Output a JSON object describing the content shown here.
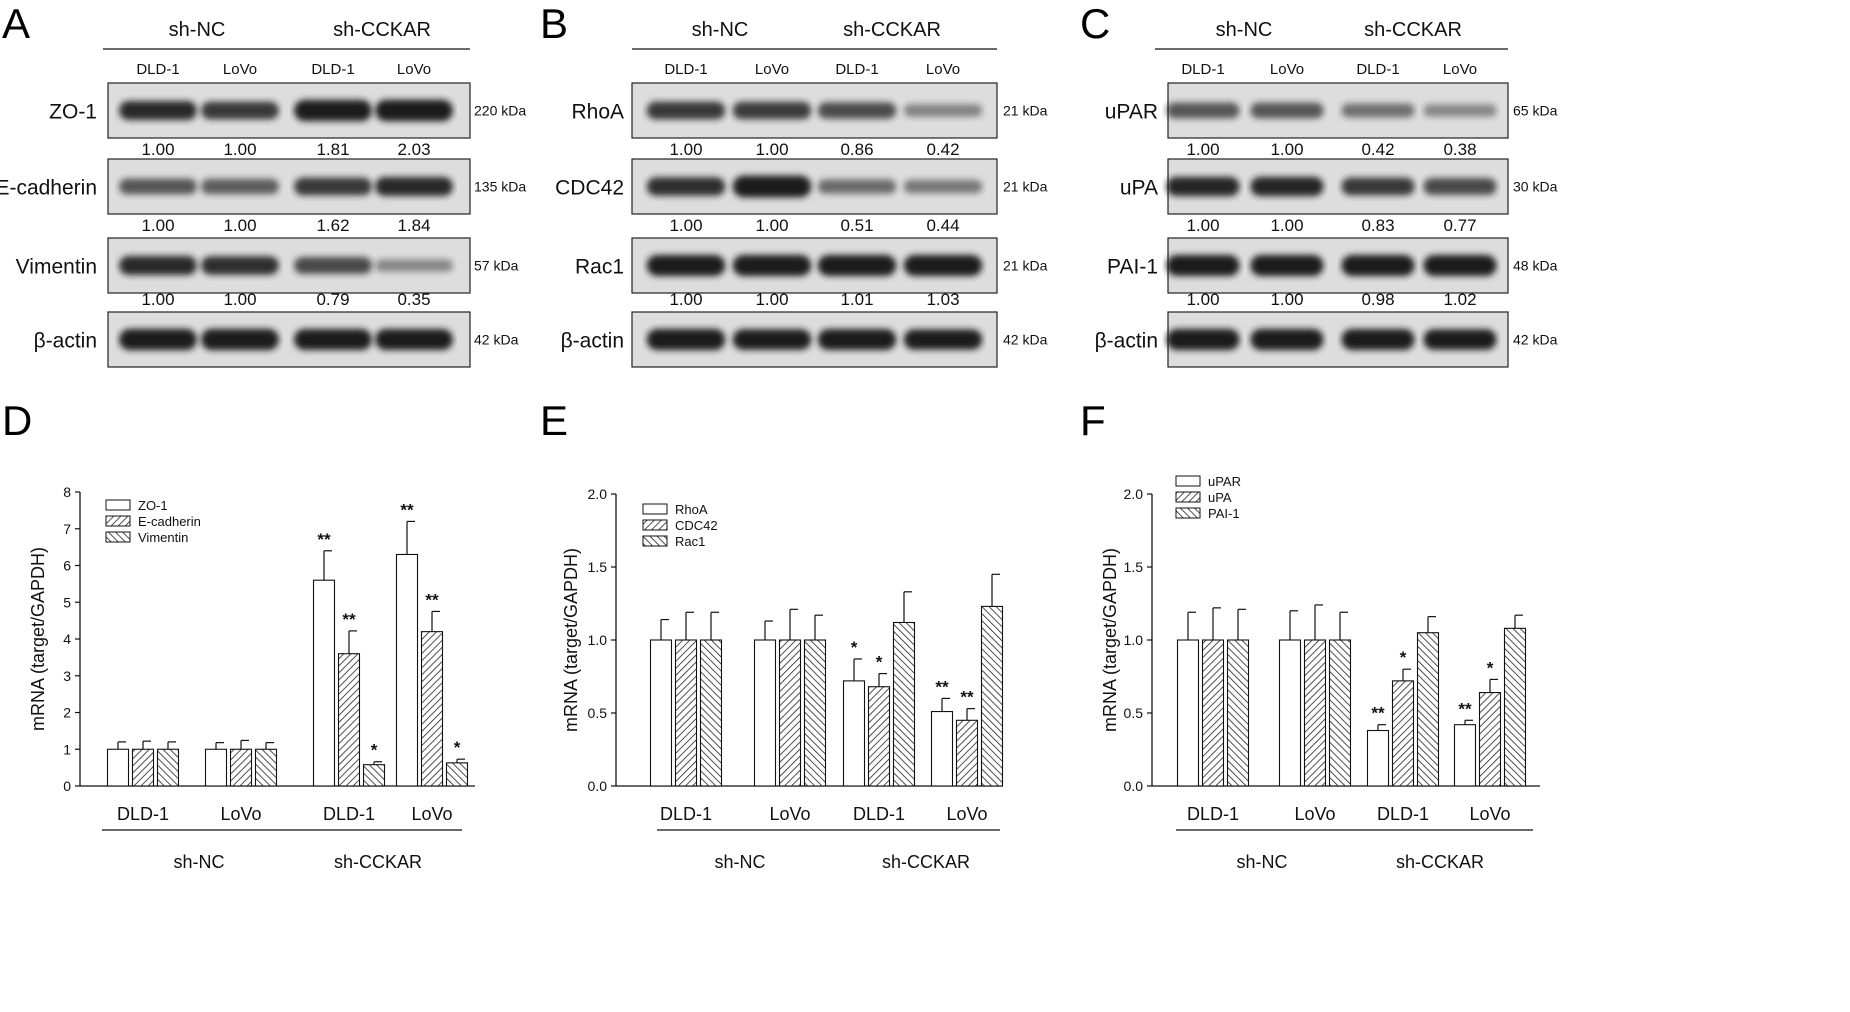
{
  "panel_letters": [
    "A",
    "B",
    "C",
    "D",
    "E",
    "F"
  ],
  "groups": {
    "ctrl": "sh-NC",
    "kd": "sh-CCKAR"
  },
  "cells": [
    "DLD-1",
    "LoVo"
  ],
  "colors": {
    "ink": "#111111",
    "band": "#1b1b1b",
    "blot_bg": "#dddddd"
  },
  "blots": [
    {
      "letter": "A",
      "lanes": [
        "DLD-1",
        "LoVo",
        "DLD-1",
        "LoVo"
      ],
      "rows": [
        {
          "label": "ZO-1",
          "kda": "220 kDa",
          "values": [
            "1.00",
            "1.00",
            "1.81",
            "2.03"
          ],
          "intensity": [
            0.78,
            0.7,
            0.95,
            0.96
          ]
        },
        {
          "label": "E-cadherin",
          "kda": "135 kDa",
          "values": [
            "1.00",
            "1.00",
            "1.62",
            "1.84"
          ],
          "intensity": [
            0.55,
            0.52,
            0.7,
            0.78
          ]
        },
        {
          "label": "Vimentin",
          "kda": "57 kDa",
          "values": [
            "1.00",
            "1.00",
            "0.79",
            "0.35"
          ],
          "intensity": [
            0.78,
            0.75,
            0.62,
            0.3
          ]
        },
        {
          "label": "β-actin",
          "kda": "42 kDa",
          "values": [],
          "intensity": [
            0.95,
            0.95,
            0.93,
            0.93
          ]
        }
      ]
    },
    {
      "letter": "B",
      "lanes": [
        "DLD-1",
        "LoVo",
        "DLD-1",
        "LoVo"
      ],
      "rows": [
        {
          "label": "RhoA",
          "kda": "21 kDa",
          "values": [
            "1.00",
            "1.00",
            "0.86",
            "0.42"
          ],
          "intensity": [
            0.7,
            0.68,
            0.6,
            0.32
          ]
        },
        {
          "label": "CDC42",
          "kda": "21 kDa",
          "values": [
            "1.00",
            "1.00",
            "0.51",
            "0.44"
          ],
          "intensity": [
            0.75,
            0.98,
            0.45,
            0.38
          ]
        },
        {
          "label": "Rac1",
          "kda": "21 kDa",
          "values": [
            "1.00",
            "1.00",
            "1.01",
            "1.03"
          ],
          "intensity": [
            0.92,
            0.92,
            0.92,
            0.92
          ]
        },
        {
          "label": "β-actin",
          "kda": "42 kDa",
          "values": [],
          "intensity": [
            0.95,
            0.9,
            0.92,
            0.88
          ]
        }
      ]
    },
    {
      "letter": "C",
      "lanes": [
        "DLD-1",
        "LoVo",
        "DLD-1",
        "LoVo"
      ],
      "rows": [
        {
          "label": "uPAR",
          "kda": "65 kDa",
          "values": [
            "1.00",
            "1.00",
            "0.42",
            "0.38"
          ],
          "intensity": [
            0.55,
            0.55,
            0.42,
            0.3
          ]
        },
        {
          "label": "uPA",
          "kda": "30 kDa",
          "values": [
            "1.00",
            "1.00",
            "0.83",
            "0.77"
          ],
          "intensity": [
            0.8,
            0.8,
            0.7,
            0.62
          ]
        },
        {
          "label": "PAI-1",
          "kda": "48 kDa",
          "values": [
            "1.00",
            "1.00",
            "0.98",
            "1.02"
          ],
          "intensity": [
            0.93,
            0.93,
            0.92,
            0.93
          ]
        },
        {
          "label": "β-actin",
          "kda": "42 kDa",
          "values": [],
          "intensity": [
            0.95,
            0.95,
            0.93,
            0.9
          ]
        }
      ]
    }
  ],
  "chart_data": [
    {
      "type": "bar",
      "letter": "D",
      "ylabel": "mRNA (target/GAPDH)",
      "ylim": [
        0,
        8
      ],
      "yticks": [
        "0",
        "1",
        "2",
        "3",
        "4",
        "5",
        "6",
        "7",
        "8"
      ],
      "categories": [
        "DLD-1",
        "LoVo",
        "DLD-1",
        "LoVo"
      ],
      "group_labels": [
        "sh-NC",
        "sh-CCKAR"
      ],
      "legend": "top-left",
      "series": [
        {
          "name": "ZO-1",
          "values": [
            1.0,
            1.0,
            5.6,
            6.3
          ],
          "errors": [
            0.2,
            0.18,
            0.8,
            0.9
          ],
          "sig": [
            "",
            "",
            "**",
            "**"
          ]
        },
        {
          "name": "E-cadherin",
          "values": [
            1.0,
            1.0,
            3.6,
            4.2
          ],
          "errors": [
            0.22,
            0.24,
            0.62,
            0.55
          ],
          "sig": [
            "",
            "",
            "**",
            "**"
          ]
        },
        {
          "name": "Vimentin",
          "values": [
            1.0,
            1.0,
            0.58,
            0.63
          ],
          "errors": [
            0.2,
            0.18,
            0.08,
            0.1
          ],
          "sig": [
            "",
            "",
            "*",
            "*"
          ]
        }
      ]
    },
    {
      "type": "bar",
      "letter": "E",
      "ylabel": "mRNA (target/GAPDH)",
      "ylim": [
        0,
        2
      ],
      "yticks": [
        "0.0",
        "0.5",
        "1.0",
        "1.5",
        "2.0"
      ],
      "categories": [
        "DLD-1",
        "LoVo",
        "DLD-1",
        "LoVo"
      ],
      "group_labels": [
        "sh-NC",
        "sh-CCKAR"
      ],
      "legend": "top-left",
      "series": [
        {
          "name": "RhoA",
          "values": [
            1.0,
            1.0,
            0.72,
            0.51
          ],
          "errors": [
            0.14,
            0.13,
            0.15,
            0.09
          ],
          "sig": [
            "",
            "",
            "*",
            "**"
          ]
        },
        {
          "name": "CDC42",
          "values": [
            1.0,
            1.0,
            0.68,
            0.45
          ],
          "errors": [
            0.19,
            0.21,
            0.09,
            0.08
          ],
          "sig": [
            "",
            "",
            "*",
            "**"
          ]
        },
        {
          "name": "Rac1",
          "values": [
            1.0,
            1.0,
            1.12,
            1.23
          ],
          "errors": [
            0.19,
            0.17,
            0.21,
            0.22
          ],
          "sig": [
            "",
            "",
            "",
            ""
          ]
        }
      ]
    },
    {
      "type": "bar",
      "letter": "F",
      "ylabel": "mRNA (target/GAPDH)",
      "ylim": [
        0,
        2
      ],
      "yticks": [
        "0.0",
        "0.5",
        "1.0",
        "1.5",
        "2.0"
      ],
      "categories": [
        "DLD-1",
        "LoVo",
        "DLD-1",
        "LoVo"
      ],
      "group_labels": [
        "sh-NC",
        "sh-CCKAR"
      ],
      "legend": "top-left",
      "series": [
        {
          "name": "uPAR",
          "values": [
            1.0,
            1.0,
            0.38,
            0.42
          ],
          "errors": [
            0.19,
            0.2,
            0.04,
            0.03
          ],
          "sig": [
            "",
            "",
            "**",
            "**"
          ]
        },
        {
          "name": "uPA",
          "values": [
            1.0,
            1.0,
            0.72,
            0.64
          ],
          "errors": [
            0.22,
            0.24,
            0.08,
            0.09
          ],
          "sig": [
            "",
            "",
            "*",
            "*"
          ]
        },
        {
          "name": "PAI-1",
          "values": [
            1.0,
            1.0,
            1.05,
            1.08
          ],
          "errors": [
            0.21,
            0.19,
            0.11,
            0.09
          ],
          "sig": [
            "",
            "",
            "",
            ""
          ]
        }
      ]
    }
  ]
}
